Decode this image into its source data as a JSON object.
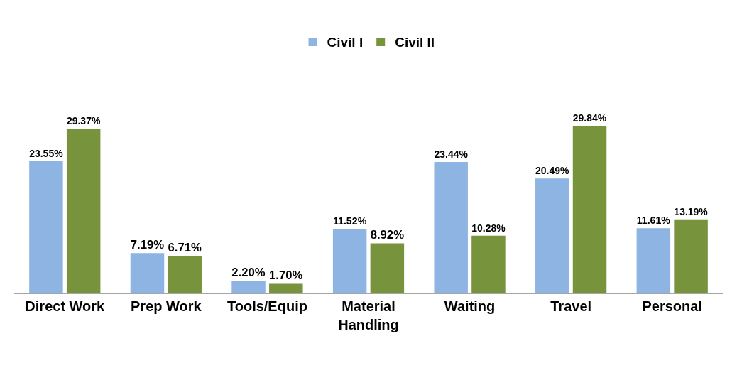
{
  "chart_data": {
    "type": "bar",
    "categories": [
      "Direct Work",
      "Prep Work",
      "Tools/Equip",
      "Material Handling",
      "Waiting",
      "Travel",
      "Personal"
    ],
    "series": [
      {
        "name": "Civil I",
        "color": "#8db4e2",
        "values": [
          23.55,
          7.19,
          2.2,
          11.52,
          23.44,
          20.49,
          11.61
        ],
        "value_labels": [
          "23.55%",
          "7.19%",
          "2.20%",
          "11.52%",
          "23.44%",
          "20.49%",
          "11.61%"
        ]
      },
      {
        "name": "Civil II",
        "color": "#77933c",
        "values": [
          29.37,
          6.71,
          1.7,
          8.92,
          10.28,
          29.84,
          13.19
        ],
        "value_labels": [
          "29.37%",
          "6.71%",
          "1.70%",
          "8.92%",
          "10.28%",
          "29.84%",
          "13.19%"
        ]
      }
    ],
    "legend": "top",
    "grid": false
  }
}
